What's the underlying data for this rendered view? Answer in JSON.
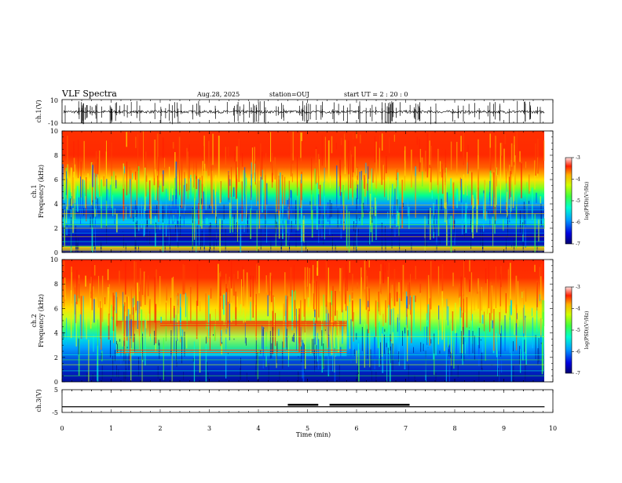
{
  "header": {
    "title": "VLF Spectra",
    "date": "Aug.28, 2025",
    "station": "station=OUJ",
    "start": "start  UT =   2 : 20 : 0"
  },
  "chart_data": [
    {
      "type": "line",
      "panel": "ch1-waveform",
      "ylabel": "ch.1(V)",
      "yticks": [
        "10",
        "-10"
      ],
      "ylim": [
        -10,
        10
      ],
      "xlim": [
        0,
        10
      ],
      "trace_color": "#000000"
    },
    {
      "type": "heatmap",
      "panel": "ch1-spectrogram",
      "ylabel_top": "ch.1",
      "ylabel": "Frequency (kHz)",
      "ylim": [
        0,
        10
      ],
      "yticks": [
        "0",
        "2",
        "4",
        "6",
        "8",
        "10"
      ],
      "xlim": [
        0,
        9.83
      ],
      "colorbar": {
        "label": "log(PSD)(V²/Hz)",
        "range": [
          -7,
          -3
        ],
        "ticks": [
          "-3",
          "-4",
          "-5",
          "-6",
          "-7"
        ]
      }
    },
    {
      "type": "heatmap",
      "panel": "ch2-spectrogram",
      "ylabel_top": "ch.2",
      "ylabel": "Frequency (kHz)",
      "ylim": [
        0,
        10
      ],
      "yticks": [
        "0",
        "2",
        "4",
        "6",
        "8",
        "10"
      ],
      "xlim": [
        0,
        9.83
      ],
      "colorbar": {
        "label": "log(PSD)(V²/Hz)",
        "range": [
          -7,
          -3
        ],
        "ticks": [
          "-3",
          "-4",
          "-5",
          "-6",
          "-7"
        ]
      }
    },
    {
      "type": "line",
      "panel": "ch3-trigger",
      "ylabel": "ch.3(V)",
      "yticks": [
        "5",
        "-5"
      ],
      "ylim": [
        -5,
        5
      ],
      "xlim": [
        0,
        10
      ],
      "baseline": -2.5,
      "segments": [
        [
          0,
          9.83
        ]
      ],
      "thick_segments": [
        [
          4.6,
          5.22
        ],
        [
          5.45,
          7.08
        ]
      ]
    }
  ],
  "xaxis": {
    "label": "Time (min)",
    "ticks": [
      "0",
      "1",
      "2",
      "3",
      "4",
      "5",
      "6",
      "7",
      "8",
      "9",
      "10"
    ],
    "range": [
      0,
      10
    ]
  }
}
